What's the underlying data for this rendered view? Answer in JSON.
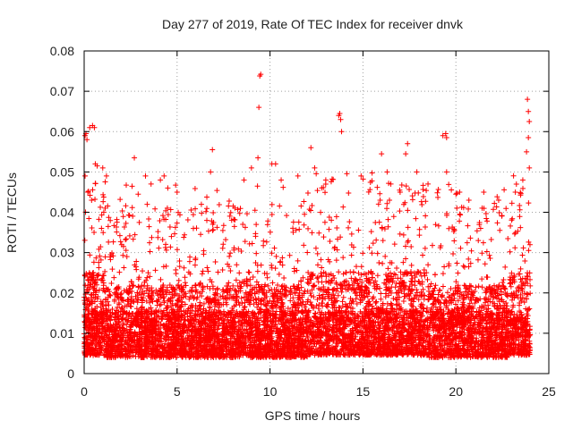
{
  "chart_data": {
    "type": "scatter",
    "title": "Day 277 of 2019, Rate Of TEC Index for receiver dnvk",
    "xlabel": "GPS time / hours",
    "ylabel": "ROTI / TECUs",
    "xlim": [
      0,
      25
    ],
    "ylim": [
      0,
      0.08
    ],
    "x_ticks": [
      "0",
      "5",
      "10",
      "15",
      "20",
      "25"
    ],
    "y_ticks": [
      "0",
      "0.01",
      "0.02",
      "0.03",
      "0.04",
      "0.05",
      "0.06",
      "0.07",
      "0.08"
    ],
    "grid": true,
    "marker": "+",
    "colors": {
      "points": "#ff0000",
      "grid": "#a0a0a0",
      "axis": "#000000"
    },
    "series": [
      {
        "name": "ROTI",
        "envelope_note": "Dense cloud of ~5000 points, 0 to 24 h; bulk 0.005-0.02 TECU/s, frequent excursions to 0.03-0.045.",
        "points": [
          [
            0.05,
            0.059
          ],
          [
            0.1,
            0.0595
          ],
          [
            0.15,
            0.058
          ],
          [
            0.3,
            0.061
          ],
          [
            0.45,
            0.0615
          ],
          [
            0.55,
            0.061
          ],
          [
            0.05,
            0.049
          ],
          [
            0.2,
            0.045
          ],
          [
            0.4,
            0.043
          ],
          [
            0.6,
            0.052
          ],
          [
            0.7,
            0.0515
          ],
          [
            1.0,
            0.051
          ],
          [
            1.2,
            0.049
          ],
          [
            2.7,
            0.0535
          ],
          [
            3.3,
            0.049
          ],
          [
            3.6,
            0.047
          ],
          [
            4.1,
            0.048
          ],
          [
            4.3,
            0.049
          ],
          [
            4.5,
            0.046
          ],
          [
            5.0,
            0.045
          ],
          [
            6.8,
            0.05
          ],
          [
            6.9,
            0.0555
          ],
          [
            8.6,
            0.048
          ],
          [
            9.0,
            0.051
          ],
          [
            9.35,
            0.0535
          ],
          [
            9.45,
            0.0738
          ],
          [
            9.5,
            0.0742
          ],
          [
            9.4,
            0.066
          ],
          [
            10.1,
            0.052
          ],
          [
            10.3,
            0.052
          ],
          [
            10.6,
            0.048
          ],
          [
            11.5,
            0.049
          ],
          [
            12.2,
            0.056
          ],
          [
            12.4,
            0.051
          ],
          [
            13.0,
            0.048
          ],
          [
            13.7,
            0.064
          ],
          [
            13.75,
            0.0645
          ],
          [
            13.8,
            0.063
          ],
          [
            13.85,
            0.06
          ],
          [
            14.9,
            0.049
          ],
          [
            16.0,
            0.0545
          ],
          [
            16.3,
            0.05
          ],
          [
            16.5,
            0.047
          ],
          [
            17.0,
            0.045
          ],
          [
            17.3,
            0.0545
          ],
          [
            17.4,
            0.057
          ],
          [
            17.9,
            0.05
          ],
          [
            18.5,
            0.047
          ],
          [
            19.3,
            0.059
          ],
          [
            19.45,
            0.0595
          ],
          [
            19.5,
            0.0585
          ],
          [
            19.5,
            0.05
          ],
          [
            20.2,
            0.045
          ],
          [
            20.7,
            0.043
          ],
          [
            21.5,
            0.045
          ],
          [
            22.3,
            0.043
          ],
          [
            23.2,
            0.045
          ],
          [
            23.6,
            0.048
          ],
          [
            23.8,
            0.055
          ],
          [
            23.85,
            0.068
          ],
          [
            23.9,
            0.065
          ],
          [
            23.95,
            0.0625
          ],
          [
            23.9,
            0.0585
          ],
          [
            23.95,
            0.051
          ]
        ]
      }
    ]
  }
}
